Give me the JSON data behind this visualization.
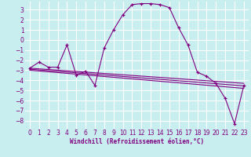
{
  "xlabel": "Windchill (Refroidissement éolien,°C)",
  "bg_color": "#c8eef0",
  "grid_color": "#ffffff",
  "line_color": "#800080",
  "xlim": [
    -0.5,
    23.5
  ],
  "ylim": [
    -8.8,
    3.8
  ],
  "xticks": [
    0,
    1,
    2,
    3,
    4,
    5,
    6,
    7,
    8,
    9,
    10,
    11,
    12,
    13,
    14,
    15,
    16,
    17,
    18,
    19,
    20,
    21,
    22,
    23
  ],
  "yticks": [
    -8,
    -7,
    -6,
    -5,
    -4,
    -3,
    -2,
    -1,
    0,
    1,
    2,
    3
  ],
  "main_series": [
    [
      0,
      -2.8
    ],
    [
      1,
      -2.2
    ],
    [
      2,
      -2.7
    ],
    [
      3,
      -2.7
    ],
    [
      4,
      -0.5
    ],
    [
      5,
      -3.5
    ],
    [
      6,
      -3.1
    ],
    [
      7,
      -4.5
    ],
    [
      8,
      -0.8
    ],
    [
      9,
      1.0
    ],
    [
      10,
      2.5
    ],
    [
      11,
      3.5
    ],
    [
      12,
      3.6
    ],
    [
      13,
      3.6
    ],
    [
      14,
      3.5
    ],
    [
      15,
      3.2
    ],
    [
      16,
      1.2
    ],
    [
      17,
      -0.5
    ],
    [
      18,
      -3.2
    ],
    [
      19,
      -3.6
    ],
    [
      20,
      -4.3
    ],
    [
      21,
      -5.8
    ],
    [
      22,
      -8.3
    ],
    [
      23,
      -4.5
    ]
  ],
  "trend_series": [
    [
      [
        0,
        -2.8
      ],
      [
        23,
        -4.3
      ]
    ],
    [
      [
        0,
        -2.9
      ],
      [
        23,
        -4.55
      ]
    ],
    [
      [
        0,
        -3.0
      ],
      [
        23,
        -4.8
      ]
    ]
  ]
}
